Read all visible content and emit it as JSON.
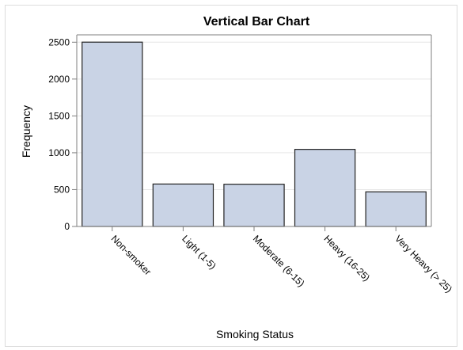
{
  "chart_data": {
    "type": "bar",
    "title": "Vertical Bar Chart",
    "xlabel": "Smoking Status",
    "ylabel": "Frequency",
    "categories": [
      "Non-smoker",
      "Light (1-5)",
      "Moderate (6-15)",
      "Heavy (16-25)",
      "Very Heavy (> 25)"
    ],
    "values": [
      2501,
      576,
      573,
      1046,
      470
    ],
    "ylim": [
      0,
      2600
    ],
    "yticks": [
      0,
      500,
      1000,
      1500,
      2000,
      2500
    ],
    "grid": true,
    "legend": "none",
    "colors": {
      "bar_fill": "#c9d3e5",
      "bar_stroke": "#222222",
      "grid": "#e6e6e6",
      "axis": "#7f7f7f"
    }
  }
}
